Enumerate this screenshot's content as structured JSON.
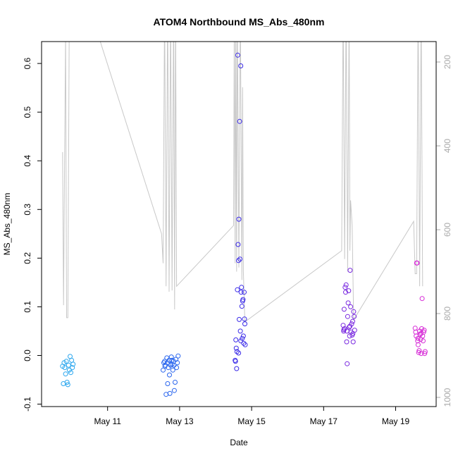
{
  "chart_data": {
    "type": "scatter",
    "title": "ATOM4 Northbound MS_Abs_480nm",
    "xlabel": "Date",
    "ylabel": "MS_Abs_480nm",
    "x_ticks": [
      "May 11",
      "May 13",
      "May 15",
      "May 17",
      "May 19"
    ],
    "xlim": [
      "2016-05-09T04:00",
      "2016-05-20T03:00"
    ],
    "ylim": [
      -0.105,
      0.645
    ],
    "y_ticks": [
      -0.1,
      0.0,
      0.1,
      0.2,
      0.3,
      0.4,
      0.5,
      0.6
    ],
    "y2_ticks": [
      200,
      400,
      600,
      800,
      1000
    ],
    "y2_reversed": true,
    "y2_color": "#aaaaaa",
    "grid": false,
    "series": [
      {
        "group": 1,
        "color": "#2aa6ee",
        "points": [
          [
            "2016-05-09T18:00",
            -0.022
          ],
          [
            "2016-05-09T18:30",
            -0.058
          ],
          [
            "2016-05-09T19:00",
            -0.015
          ],
          [
            "2016-05-09T19:30",
            -0.025
          ],
          [
            "2016-05-09T20:00",
            -0.038
          ],
          [
            "2016-05-09T20:30",
            -0.012
          ],
          [
            "2016-05-09T21:00",
            -0.055
          ],
          [
            "2016-05-09T21:30",
            -0.06
          ],
          [
            "2016-05-09T22:00",
            -0.02
          ],
          [
            "2016-05-09T22:30",
            -0.03
          ],
          [
            "2016-05-09T23:00",
            -0.002
          ],
          [
            "2016-05-09T23:30",
            -0.035
          ],
          [
            "2016-05-10T00:00",
            -0.01
          ],
          [
            "2016-05-10T00:30",
            -0.025
          ],
          [
            "2016-05-10T01:00",
            -0.018
          ]
        ]
      },
      {
        "group": 2,
        "color": "#2a66ee",
        "points": [
          [
            "2016-05-12T13:00",
            -0.03
          ],
          [
            "2016-05-12T13:30",
            -0.015
          ],
          [
            "2016-05-12T14:00",
            -0.012
          ],
          [
            "2016-05-12T14:30",
            -0.02
          ],
          [
            "2016-05-12T15:00",
            -0.08
          ],
          [
            "2016-05-12T15:30",
            -0.005
          ],
          [
            "2016-05-12T16:00",
            -0.058
          ],
          [
            "2016-05-12T16:30",
            -0.025
          ],
          [
            "2016-05-12T17:00",
            -0.01
          ],
          [
            "2016-05-12T17:30",
            -0.078
          ],
          [
            "2016-05-12T18:00",
            -0.02
          ],
          [
            "2016-05-12T18:30",
            -0.003
          ],
          [
            "2016-05-12T19:00",
            -0.018
          ],
          [
            "2016-05-12T19:30",
            -0.03
          ],
          [
            "2016-05-12T20:00",
            -0.012
          ],
          [
            "2016-05-12T20:30",
            -0.072
          ],
          [
            "2016-05-12T21:00",
            -0.055
          ],
          [
            "2016-05-12T21:30",
            -0.008
          ],
          [
            "2016-05-12T22:00",
            -0.025
          ],
          [
            "2016-05-12T22:30",
            -0.015
          ],
          [
            "2016-05-12T23:00",
            -0.001
          ],
          [
            "2016-05-12T14:15",
            -0.022
          ],
          [
            "2016-05-12T15:45",
            -0.015
          ],
          [
            "2016-05-12T17:15",
            -0.04
          ],
          [
            "2016-05-12T18:45",
            -0.01
          ],
          [
            "2016-05-12T20:15",
            -0.02
          ]
        ]
      },
      {
        "group": 3,
        "color": "#3a2ae8",
        "points": [
          [
            "2016-05-14T13:00",
            -0.01
          ],
          [
            "2016-05-14T13:15",
            -0.012
          ],
          [
            "2016-05-14T13:30",
            0.032
          ],
          [
            "2016-05-14T13:45",
            0.015
          ],
          [
            "2016-05-14T14:00",
            -0.027
          ],
          [
            "2016-05-14T14:15",
            0.008
          ],
          [
            "2016-05-14T14:30",
            0.135
          ],
          [
            "2016-05-14T14:45",
            0.617
          ],
          [
            "2016-05-14T15:00",
            0.228
          ],
          [
            "2016-05-14T15:15",
            0.195
          ],
          [
            "2016-05-14T15:30",
            0.28
          ],
          [
            "2016-05-14T15:45",
            0.074
          ],
          [
            "2016-05-14T16:00",
            0.481
          ],
          [
            "2016-05-14T16:15",
            0.198
          ],
          [
            "2016-05-14T16:30",
            0.05
          ],
          [
            "2016-05-14T16:45",
            0.595
          ],
          [
            "2016-05-14T17:00",
            0.13
          ],
          [
            "2016-05-14T17:15",
            0.14
          ],
          [
            "2016-05-14T17:30",
            0.101
          ],
          [
            "2016-05-14T17:45",
            0.035
          ],
          [
            "2016-05-14T18:00",
            0.112
          ],
          [
            "2016-05-14T18:15",
            0.115
          ],
          [
            "2016-05-14T18:30",
            0.04
          ],
          [
            "2016-05-14T18:45",
            0.025
          ],
          [
            "2016-05-14T19:00",
            0.13
          ],
          [
            "2016-05-14T19:15",
            0.075
          ],
          [
            "2016-05-14T19:30",
            0.065
          ],
          [
            "2016-05-14T19:45",
            0.022
          ],
          [
            "2016-05-14T15:20",
            0.005
          ],
          [
            "2016-05-14T16:50",
            0.03
          ]
        ]
      },
      {
        "group": 4,
        "color": "#7a2ae0",
        "points": [
          [
            "2016-05-17T13:00",
            0.062
          ],
          [
            "2016-05-17T13:20",
            0.05
          ],
          [
            "2016-05-17T13:40",
            0.095
          ],
          [
            "2016-05-17T14:00",
            0.055
          ],
          [
            "2016-05-17T14:20",
            0.14
          ],
          [
            "2016-05-17T14:40",
            0.13
          ],
          [
            "2016-05-17T15:00",
            0.145
          ],
          [
            "2016-05-17T15:20",
            0.028
          ],
          [
            "2016-05-17T15:40",
            -0.017
          ],
          [
            "2016-05-17T16:00",
            0.08
          ],
          [
            "2016-05-17T16:20",
            0.108
          ],
          [
            "2016-05-17T16:40",
            0.133
          ],
          [
            "2016-05-17T17:00",
            0.058
          ],
          [
            "2016-05-17T17:20",
            0.04
          ],
          [
            "2016-05-17T17:40",
            0.175
          ],
          [
            "2016-05-17T18:00",
            0.1
          ],
          [
            "2016-05-17T18:20",
            0.048
          ],
          [
            "2016-05-17T18:40",
            0.065
          ],
          [
            "2016-05-17T19:00",
            0.042
          ],
          [
            "2016-05-17T19:20",
            0.07
          ],
          [
            "2016-05-17T19:40",
            0.028
          ],
          [
            "2016-05-17T20:00",
            0.09
          ],
          [
            "2016-05-17T20:20",
            0.08
          ],
          [
            "2016-05-17T20:40",
            0.052
          ],
          [
            "2016-05-17T13:30",
            0.053
          ],
          [
            "2016-05-17T15:30",
            0.05
          ],
          [
            "2016-05-17T17:30",
            0.06
          ],
          [
            "2016-05-17T19:30",
            0.045
          ]
        ]
      },
      {
        "group": 5,
        "color": "#d62ad6",
        "points": [
          [
            "2016-05-19T13:00",
            0.056
          ],
          [
            "2016-05-19T13:20",
            0.048
          ],
          [
            "2016-05-19T13:40",
            0.04
          ],
          [
            "2016-05-19T14:00",
            0.19
          ],
          [
            "2016-05-19T14:20",
            0.19
          ],
          [
            "2016-05-19T14:40",
            0.03
          ],
          [
            "2016-05-19T15:00",
            0.022
          ],
          [
            "2016-05-19T15:20",
            0.006
          ],
          [
            "2016-05-19T15:40",
            0.01
          ],
          [
            "2016-05-19T16:00",
            0.05
          ],
          [
            "2016-05-19T16:20",
            0.043
          ],
          [
            "2016-05-19T16:40",
            0.033
          ],
          [
            "2016-05-19T17:00",
            0.004
          ],
          [
            "2016-05-19T17:20",
            0.055
          ],
          [
            "2016-05-19T17:40",
            0.117
          ],
          [
            "2016-05-19T18:00",
            0.04
          ],
          [
            "2016-05-19T18:20",
            0.03
          ],
          [
            "2016-05-19T18:40",
            0.048
          ],
          [
            "2016-05-19T19:00",
            0.052
          ],
          [
            "2016-05-19T19:20",
            0.004
          ],
          [
            "2016-05-19T19:40",
            0.008
          ],
          [
            "2016-05-19T14:50",
            0.035
          ],
          [
            "2016-05-19T16:50",
            0.045
          ]
        ]
      }
    ],
    "depth_trace": {
      "color": "#c8c8c8",
      "points": [
        [
          "2016-05-09T18:00",
          415
        ],
        [
          "2016-05-09T18:40",
          780
        ],
        [
          "2016-05-09T19:20",
          450
        ],
        [
          "2016-05-09T20:00",
          130
        ],
        [
          "2016-05-09T20:40",
          810
        ],
        [
          "2016-05-09T21:30",
          810
        ],
        [
          "2016-05-09T22:30",
          60
        ],
        [
          "2016-05-10T05:00",
          60
        ],
        [
          "2016-05-10T11:00",
          60
        ],
        [
          "2016-05-12T12:00",
          610
        ],
        [
          "2016-05-12T13:00",
          680
        ],
        [
          "2016-05-12T14:00",
          60
        ],
        [
          "2016-05-12T15:00",
          735
        ],
        [
          "2016-05-12T16:00",
          60
        ],
        [
          "2016-05-12T17:00",
          748
        ],
        [
          "2016-05-12T18:00",
          60
        ],
        [
          "2016-05-12T19:00",
          745
        ],
        [
          "2016-05-12T20:00",
          60
        ],
        [
          "2016-05-12T20:40",
          790
        ],
        [
          "2016-05-12T21:20",
          60
        ],
        [
          "2016-05-12T22:00",
          735
        ],
        [
          "2016-05-14T12:00",
          590
        ],
        [
          "2016-05-14T12:30",
          60
        ],
        [
          "2016-05-14T13:00",
          680
        ],
        [
          "2016-05-14T13:30",
          60
        ],
        [
          "2016-05-14T14:00",
          700
        ],
        [
          "2016-05-14T14:30",
          60
        ],
        [
          "2016-05-14T15:30",
          690
        ],
        [
          "2016-05-14T16:30",
          60
        ],
        [
          "2016-05-14T17:30",
          720
        ],
        [
          "2016-05-14T18:00",
          260
        ],
        [
          "2016-05-14T18:30",
          700
        ],
        [
          "2016-05-14T19:30",
          820
        ],
        [
          "2016-05-17T12:00",
          650
        ],
        [
          "2016-05-17T13:00",
          60
        ],
        [
          "2016-05-17T14:00",
          670
        ],
        [
          "2016-05-17T15:00",
          60
        ],
        [
          "2016-05-17T16:00",
          700
        ],
        [
          "2016-05-17T17:00",
          60
        ],
        [
          "2016-05-17T17:30",
          650
        ],
        [
          "2016-05-17T18:00",
          530
        ],
        [
          "2016-05-17T19:00",
          590
        ],
        [
          "2016-05-17T20:00",
          815
        ],
        [
          "2016-05-19T12:00",
          580
        ],
        [
          "2016-05-19T13:00",
          705
        ],
        [
          "2016-05-19T14:00",
          705
        ],
        [
          "2016-05-19T15:00",
          60
        ],
        [
          "2016-05-19T16:00",
          735
        ],
        [
          "2016-05-19T17:00",
          60
        ],
        [
          "2016-05-19T18:00",
          735
        ]
      ]
    }
  }
}
